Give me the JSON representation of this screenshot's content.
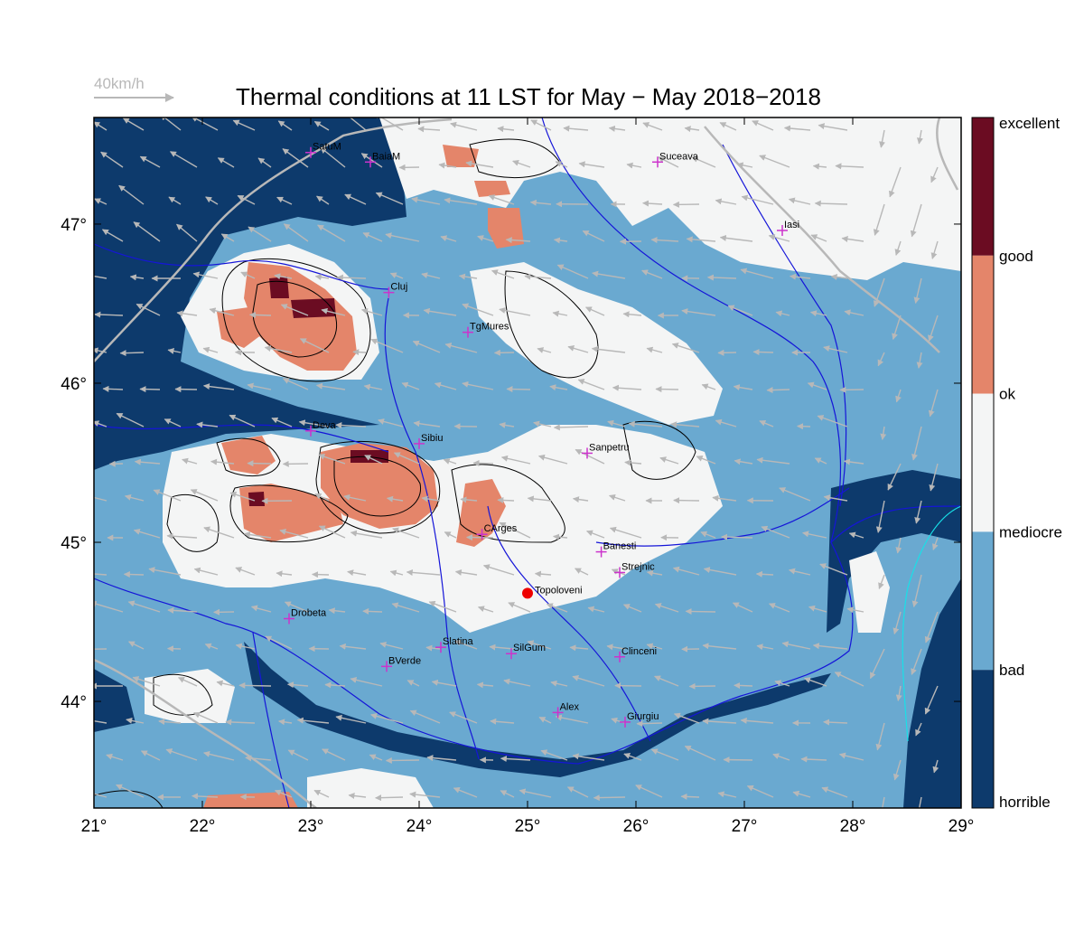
{
  "title": "Thermal conditions at 11 LST for May − May  2018−2018",
  "wind_scale": {
    "label": "40km/h"
  },
  "x_ticks": [
    "21°",
    "22°",
    "23°",
    "24°",
    "25°",
    "26°",
    "27°",
    "28°",
    "29°"
  ],
  "y_ticks": [
    "44°",
    "45°",
    "46°",
    "47°"
  ],
  "x_tick_values": [
    21,
    22,
    23,
    24,
    25,
    26,
    27,
    28,
    29
  ],
  "y_tick_values": [
    44,
    45,
    46,
    47
  ],
  "extent": {
    "lon": [
      21,
      29
    ],
    "lat": [
      43.33,
      47.67
    ]
  },
  "legend": {
    "labels": [
      "excellent",
      "good",
      "ok",
      "mediocre",
      "bad",
      "horrible"
    ],
    "colors": [
      "#6b0c22",
      "#e4856a",
      "#f4f5f5",
      "#6aa9d0",
      "#0d3a6c"
    ]
  },
  "map_colors": {
    "horrible": "#0d3a6c",
    "bad": "#6aa9d0",
    "mediocre": "#f4f5f5",
    "ok": "#e4856a",
    "good": "#6b0c22",
    "river": "#1515d8",
    "coast": "#18e0e8",
    "city_marker": "#cc33cc",
    "highlight": "#ee0000",
    "wind_arrow": "#b8b8b8"
  },
  "cities": [
    {
      "name": "SatuM",
      "lon": 23.0,
      "lat": 47.45
    },
    {
      "name": "BaiaM",
      "lon": 23.55,
      "lat": 47.39
    },
    {
      "name": "Suceava",
      "lon": 26.2,
      "lat": 47.39
    },
    {
      "name": "Iasi",
      "lon": 27.35,
      "lat": 46.96
    },
    {
      "name": "Cluj",
      "lon": 23.72,
      "lat": 46.57
    },
    {
      "name": "TgMures",
      "lon": 24.45,
      "lat": 46.32
    },
    {
      "name": "Deva",
      "lon": 23.0,
      "lat": 45.7
    },
    {
      "name": "Sibiu",
      "lon": 24.0,
      "lat": 45.62
    },
    {
      "name": "Sanpetru",
      "lon": 25.55,
      "lat": 45.56
    },
    {
      "name": "CArges",
      "lon": 24.58,
      "lat": 45.05
    },
    {
      "name": "Banesti",
      "lon": 25.68,
      "lat": 44.94
    },
    {
      "name": "Strejnic",
      "lon": 25.85,
      "lat": 44.81
    },
    {
      "name": "Drobeta",
      "lon": 22.8,
      "lat": 44.52
    },
    {
      "name": "Slatina",
      "lon": 24.2,
      "lat": 44.34
    },
    {
      "name": "SilGum",
      "lon": 24.85,
      "lat": 44.3
    },
    {
      "name": "Clinceni",
      "lon": 25.85,
      "lat": 44.28
    },
    {
      "name": "BVerde",
      "lon": 23.7,
      "lat": 44.22
    },
    {
      "name": "Alex",
      "lon": 25.28,
      "lat": 43.93
    },
    {
      "name": "Giurgiu",
      "lon": 25.9,
      "lat": 43.87
    }
  ],
  "highlight_site": {
    "name": "Topoloveni",
    "lon": 25.0,
    "lat": 44.68
  }
}
